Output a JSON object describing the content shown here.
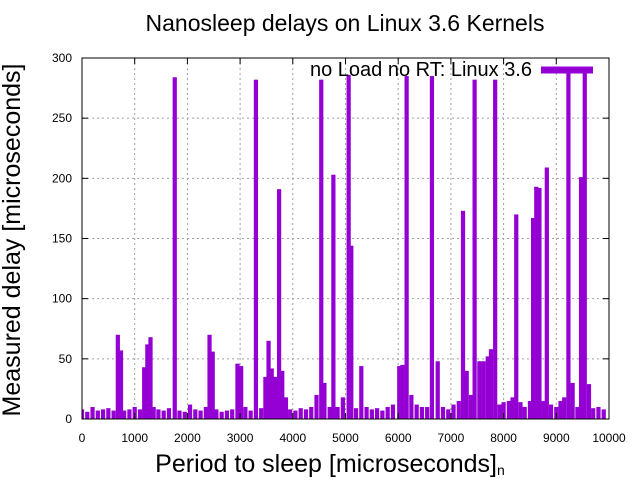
{
  "chart_data": {
    "type": "bar",
    "title": "Nanosleep delays on Linux 3.6 Kernels",
    "xlabel": "Period to sleep [microseconds]",
    "xlabel_suffix": "n",
    "ylabel": "Measured delay [microseconds]",
    "xlim": [
      0,
      10000
    ],
    "ylim": [
      0,
      300
    ],
    "xticks": [
      0,
      1000,
      2000,
      3000,
      4000,
      5000,
      6000,
      7000,
      8000,
      9000,
      10000
    ],
    "yticks": [
      0,
      50,
      100,
      150,
      200,
      250,
      300
    ],
    "grid": true,
    "legend_position": "top-right",
    "series": [
      {
        "name": "no Load no RT: Linux 3.6",
        "color": "#9400d3",
        "bar_width": 80,
        "points": [
          [
            0,
            8
          ],
          [
            100,
            6
          ],
          [
            200,
            10
          ],
          [
            300,
            7
          ],
          [
            400,
            8
          ],
          [
            500,
            9
          ],
          [
            600,
            7
          ],
          [
            680,
            70
          ],
          [
            740,
            57
          ],
          [
            800,
            7
          ],
          [
            900,
            8
          ],
          [
            1000,
            10
          ],
          [
            1100,
            8
          ],
          [
            1180,
            43
          ],
          [
            1240,
            62
          ],
          [
            1300,
            68
          ],
          [
            1360,
            10
          ],
          [
            1450,
            8
          ],
          [
            1550,
            7
          ],
          [
            1650,
            9
          ],
          [
            1760,
            284
          ],
          [
            1850,
            7
          ],
          [
            1950,
            6
          ],
          [
            2050,
            12
          ],
          [
            2150,
            8
          ],
          [
            2250,
            7
          ],
          [
            2350,
            10
          ],
          [
            2420,
            70
          ],
          [
            2480,
            56
          ],
          [
            2550,
            8
          ],
          [
            2650,
            6
          ],
          [
            2750,
            7
          ],
          [
            2850,
            8
          ],
          [
            2950,
            46
          ],
          [
            3020,
            44
          ],
          [
            3100,
            10
          ],
          [
            3200,
            7
          ],
          [
            3300,
            282
          ],
          [
            3400,
            9
          ],
          [
            3480,
            35
          ],
          [
            3540,
            65
          ],
          [
            3600,
            42
          ],
          [
            3660,
            35
          ],
          [
            3740,
            191
          ],
          [
            3800,
            40
          ],
          [
            3870,
            18
          ],
          [
            3950,
            8
          ],
          [
            4050,
            7
          ],
          [
            4150,
            9
          ],
          [
            4250,
            8
          ],
          [
            4350,
            10
          ],
          [
            4450,
            20
          ],
          [
            4540,
            282
          ],
          [
            4600,
            30
          ],
          [
            4700,
            10
          ],
          [
            4770,
            203
          ],
          [
            4850,
            10
          ],
          [
            4950,
            18
          ],
          [
            5060,
            286
          ],
          [
            5110,
            144
          ],
          [
            5200,
            9
          ],
          [
            5300,
            44
          ],
          [
            5400,
            10
          ],
          [
            5500,
            8
          ],
          [
            5600,
            9
          ],
          [
            5700,
            7
          ],
          [
            5800,
            10
          ],
          [
            5900,
            12
          ],
          [
            6020,
            44
          ],
          [
            6080,
            45
          ],
          [
            6160,
            285
          ],
          [
            6250,
            20
          ],
          [
            6350,
            12
          ],
          [
            6450,
            10
          ],
          [
            6550,
            10
          ],
          [
            6640,
            285
          ],
          [
            6750,
            48
          ],
          [
            6850,
            10
          ],
          [
            6950,
            8
          ],
          [
            7050,
            12
          ],
          [
            7150,
            15
          ],
          [
            7230,
            173
          ],
          [
            7300,
            40
          ],
          [
            7380,
            20
          ],
          [
            7450,
            282
          ],
          [
            7540,
            48
          ],
          [
            7620,
            48
          ],
          [
            7700,
            52
          ],
          [
            7760,
            58
          ],
          [
            7840,
            282
          ],
          [
            7920,
            12
          ],
          [
            8000,
            14
          ],
          [
            8100,
            15
          ],
          [
            8170,
            18
          ],
          [
            8240,
            170
          ],
          [
            8320,
            14
          ],
          [
            8400,
            10
          ],
          [
            8500,
            15
          ],
          [
            8560,
            167
          ],
          [
            8620,
            193
          ],
          [
            8680,
            192
          ],
          [
            8760,
            15
          ],
          [
            8820,
            209
          ],
          [
            8900,
            12
          ],
          [
            9000,
            10
          ],
          [
            9080,
            15
          ],
          [
            9150,
            18
          ],
          [
            9230,
            292
          ],
          [
            9310,
            30
          ],
          [
            9400,
            10
          ],
          [
            9470,
            201
          ],
          [
            9540,
            289
          ],
          [
            9620,
            29
          ],
          [
            9700,
            9
          ],
          [
            9800,
            10
          ],
          [
            9900,
            8
          ]
        ]
      }
    ]
  }
}
